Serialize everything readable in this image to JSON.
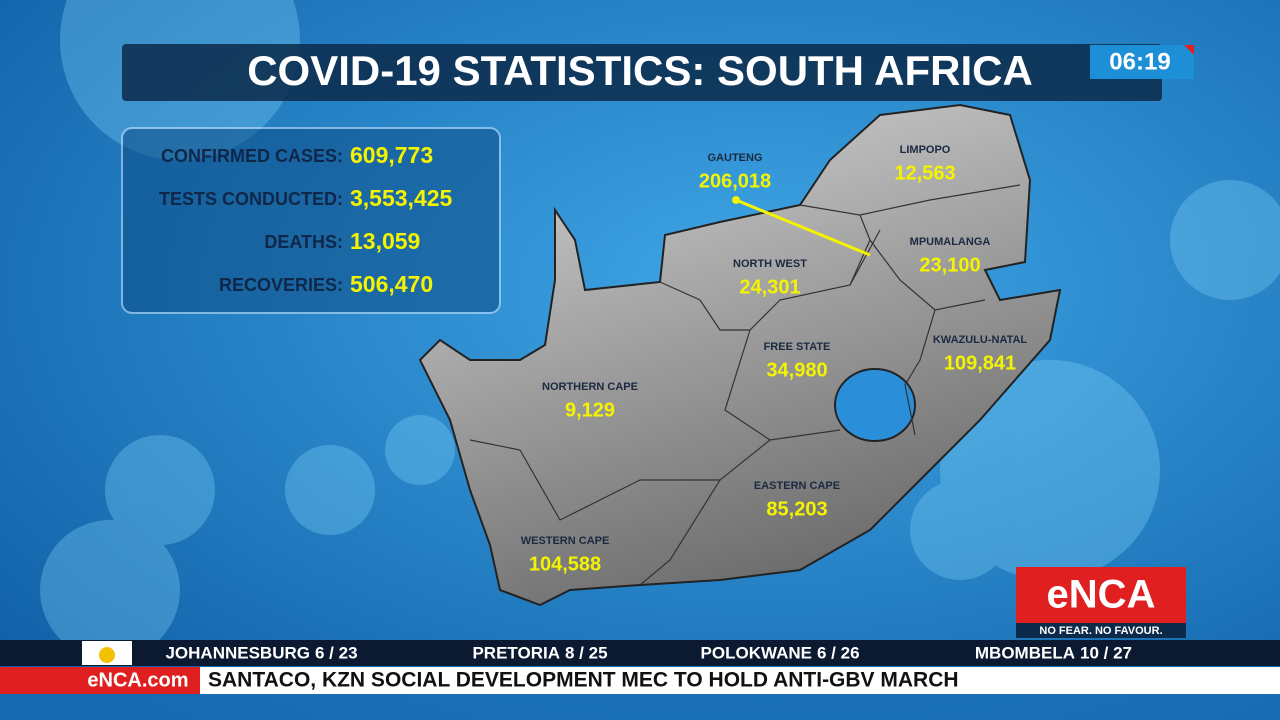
{
  "header": {
    "title": "COVID-19 STATISTICS: SOUTH AFRICA",
    "clock": "06:19"
  },
  "stats": [
    {
      "label": "CONFIRMED CASES:",
      "value": "609,773"
    },
    {
      "label": "TESTS CONDUCTED:",
      "value": "3,553,425"
    },
    {
      "label": "DEATHS:",
      "value": "13,059"
    },
    {
      "label": "RECOVERIES:",
      "value": "506,470"
    }
  ],
  "provinces": [
    {
      "name": "GAUTENG",
      "value": "206,018"
    },
    {
      "name": "LIMPOPO",
      "value": "12,563"
    },
    {
      "name": "MPUMALANGA",
      "value": "23,100"
    },
    {
      "name": "NORTH WEST",
      "value": "24,301"
    },
    {
      "name": "FREE STATE",
      "value": "34,980"
    },
    {
      "name": "KWAZULU-NATAL",
      "value": "109,841"
    },
    {
      "name": "NORTHERN CAPE",
      "value": "9,129"
    },
    {
      "name": "EASTERN CAPE",
      "value": "85,203"
    },
    {
      "name": "WESTERN CAPE",
      "value": "104,588"
    }
  ],
  "logo": {
    "name": "eNCA",
    "slogan": "NO FEAR. NO FAVOUR."
  },
  "weather": [
    {
      "city": "JOHANNESBURG",
      "temps": "6 / 23"
    },
    {
      "city": "PRETORIA",
      "temps": "8 / 25"
    },
    {
      "city": "POLOKWANE",
      "temps": "6 / 26"
    },
    {
      "city": "MBOMBELA",
      "temps": "10 / 27"
    }
  ],
  "ticker": {
    "source": "eNCA.com",
    "headline": "SANTACO, KZN SOCIAL DEVELOPMENT MEC TO HOLD ANTI-GBV MARCH"
  }
}
